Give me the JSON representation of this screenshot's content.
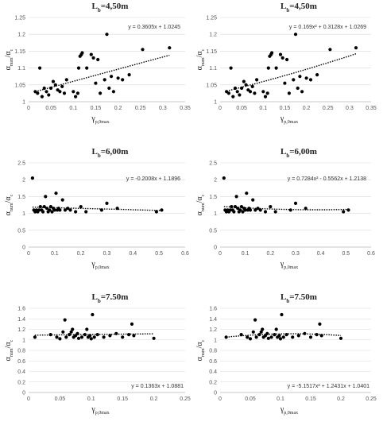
{
  "chart_data": [
    {
      "type": "scatter",
      "title": "Lb=4,50m",
      "title_main": "L",
      "title_sub": "b",
      "title_rest": "=4,50m",
      "ylabel_main": "α",
      "ylabel_sub1": "num",
      "ylabel_mid": "/α",
      "ylabel_sub2": "c",
      "xlabel_main": "γ",
      "xlabel_sub": "p,0max",
      "xlim": [
        0,
        0.35
      ],
      "ylim": [
        1,
        1.25
      ],
      "x_ticks": [
        "0",
        "0.05",
        "0.1",
        "0.15",
        "0.2",
        "0.25",
        "0.3",
        "0.35"
      ],
      "y_ticks": [
        "1",
        "1.05",
        "1.1",
        "1.15",
        "1.2",
        "1.25"
      ],
      "trendline": {
        "type": "linear",
        "coefficients": [
          0.3605,
          1.0245
        ],
        "equation": "y = 0.3605x + 1.0245"
      },
      "x": [
        0.015,
        0.02,
        0.025,
        0.03,
        0.035,
        0.04,
        0.045,
        0.05,
        0.055,
        0.06,
        0.065,
        0.07,
        0.075,
        0.08,
        0.085,
        0.1,
        0.105,
        0.11,
        0.112,
        0.115,
        0.118,
        0.12,
        0.13,
        0.14,
        0.145,
        0.15,
        0.155,
        0.16,
        0.17,
        0.175,
        0.18,
        0.185,
        0.19,
        0.2,
        0.21,
        0.225,
        0.255,
        0.315
      ],
      "y": [
        1.03,
        1.025,
        1.1,
        1.015,
        1.04,
        1.03,
        1.02,
        1.04,
        1.06,
        1.05,
        1.035,
        1.03,
        1.045,
        1.025,
        1.065,
        1.03,
        1.015,
        1.025,
        1.1,
        1.135,
        1.14,
        1.145,
        1.1,
        1.14,
        1.13,
        1.055,
        1.125,
        1.025,
        1.065,
        1.2,
        1.04,
        1.075,
        1.03,
        1.07,
        1.065,
        1.08,
        1.155,
        1.16
      ]
    },
    {
      "type": "scatter",
      "title": "Lb=4,50m",
      "title_main": "L",
      "title_sub": "b",
      "title_rest": "=4,50m",
      "ylabel_main": "α",
      "ylabel_sub1": "num",
      "ylabel_mid": "/α",
      "ylabel_sub2": "c",
      "xlabel_main": "γ",
      "xlabel_sub": "p,0max",
      "xlim": [
        0,
        0.35
      ],
      "ylim": [
        1,
        1.25
      ],
      "x_ticks": [
        "0",
        "0.05",
        "0.1",
        "0.15",
        "0.2",
        "0.25",
        "0.3",
        "0.35"
      ],
      "y_ticks": [
        "1",
        "1.05",
        "1.1",
        "1.15",
        "1.2",
        "1.25"
      ],
      "trendline": {
        "type": "poly2",
        "coefficients": [
          0.169,
          0.3128,
          1.0269
        ],
        "equation": "y = 0.169x² + 0.3128x + 1.0269"
      },
      "x": [
        0.015,
        0.02,
        0.025,
        0.03,
        0.035,
        0.04,
        0.045,
        0.05,
        0.055,
        0.06,
        0.065,
        0.07,
        0.075,
        0.08,
        0.085,
        0.1,
        0.105,
        0.11,
        0.112,
        0.115,
        0.118,
        0.12,
        0.13,
        0.14,
        0.145,
        0.15,
        0.155,
        0.16,
        0.17,
        0.175,
        0.18,
        0.185,
        0.19,
        0.2,
        0.21,
        0.225,
        0.255,
        0.315
      ],
      "y": [
        1.03,
        1.025,
        1.1,
        1.015,
        1.04,
        1.03,
        1.02,
        1.04,
        1.06,
        1.05,
        1.035,
        1.03,
        1.045,
        1.025,
        1.065,
        1.03,
        1.015,
        1.025,
        1.1,
        1.135,
        1.14,
        1.145,
        1.1,
        1.14,
        1.13,
        1.055,
        1.125,
        1.025,
        1.065,
        1.2,
        1.04,
        1.075,
        1.03,
        1.07,
        1.065,
        1.08,
        1.155,
        1.16
      ]
    },
    {
      "type": "scatter",
      "title": "Lb=6,00m",
      "title_main": "L",
      "title_sub": "b",
      "title_rest": "=6,00m",
      "ylabel_main": "α",
      "ylabel_sub1": "num",
      "ylabel_mid": "/α",
      "ylabel_sub2": "c",
      "xlabel_main": "γ",
      "xlabel_sub": "p,0max",
      "xlim": [
        0,
        0.6
      ],
      "ylim": [
        0,
        2.5
      ],
      "x_ticks": [
        "0",
        "0.1",
        "0.2",
        "0.3",
        "0.4",
        "0.5",
        "0.6"
      ],
      "y_ticks": [
        "0",
        "0.5",
        "1",
        "1.5",
        "2",
        "2.5"
      ],
      "trendline": {
        "type": "linear",
        "coefficients": [
          -0.2008,
          1.1896
        ],
        "equation": "y = -0.2008x + 1.1896"
      },
      "x": [
        0.015,
        0.02,
        0.025,
        0.03,
        0.035,
        0.04,
        0.045,
        0.05,
        0.055,
        0.06,
        0.065,
        0.07,
        0.075,
        0.08,
        0.085,
        0.09,
        0.095,
        0.1,
        0.105,
        0.11,
        0.115,
        0.12,
        0.13,
        0.14,
        0.15,
        0.16,
        0.18,
        0.2,
        0.22,
        0.28,
        0.3,
        0.34,
        0.49,
        0.51
      ],
      "y": [
        2.05,
        1.1,
        1.05,
        1.1,
        1.05,
        1.1,
        1.2,
        1.1,
        1.05,
        1.2,
        1.5,
        1.15,
        1.05,
        1.1,
        1.2,
        1.05,
        1.15,
        1.1,
        1.6,
        1.1,
        1.15,
        1.1,
        1.4,
        1.1,
        1.15,
        1.1,
        1.05,
        1.2,
        1.05,
        1.1,
        1.3,
        1.15,
        1.05,
        1.1
      ]
    },
    {
      "type": "scatter",
      "title": "Lb=6,00m",
      "title_main": "L",
      "title_sub": "b",
      "title_rest": "=6,00m",
      "ylabel_main": "α",
      "ylabel_sub1": "num",
      "ylabel_mid": "/α",
      "ylabel_sub2": "c",
      "xlabel_main": "γ",
      "xlabel_sub": "p,0max",
      "xlim": [
        0,
        0.6
      ],
      "ylim": [
        0,
        2.5
      ],
      "x_ticks": [
        "0",
        "0.1",
        "0.2",
        "0.3",
        "0.4",
        "0.5",
        "0.6"
      ],
      "y_ticks": [
        "0",
        "0.5",
        "1",
        "1.5",
        "2",
        "2.5"
      ],
      "trendline": {
        "type": "poly2",
        "coefficients": [
          0.7284,
          -0.5562,
          1.2138
        ],
        "equation": "y = 0.7284x² - 0.5562x + 1.2138"
      },
      "x": [
        0.015,
        0.02,
        0.025,
        0.03,
        0.035,
        0.04,
        0.045,
        0.05,
        0.055,
        0.06,
        0.065,
        0.07,
        0.075,
        0.08,
        0.085,
        0.09,
        0.095,
        0.1,
        0.105,
        0.11,
        0.115,
        0.12,
        0.13,
        0.14,
        0.15,
        0.16,
        0.18,
        0.2,
        0.22,
        0.28,
        0.3,
        0.34,
        0.49,
        0.51
      ],
      "y": [
        2.05,
        1.1,
        1.05,
        1.1,
        1.05,
        1.1,
        1.2,
        1.1,
        1.05,
        1.2,
        1.5,
        1.15,
        1.05,
        1.1,
        1.2,
        1.05,
        1.15,
        1.1,
        1.6,
        1.1,
        1.15,
        1.1,
        1.4,
        1.1,
        1.15,
        1.1,
        1.05,
        1.2,
        1.05,
        1.1,
        1.3,
        1.15,
        1.05,
        1.1
      ]
    },
    {
      "type": "scatter",
      "title": "Lb=7.50m",
      "title_main": "L",
      "title_sub": "b",
      "title_rest": "=7.50m",
      "ylabel_main": "α",
      "ylabel_sub1": "num",
      "ylabel_mid": "/α",
      "ylabel_sub2": "c",
      "xlabel_main": "γ",
      "xlabel_sub": "p,0max",
      "xlim": [
        0,
        0.25
      ],
      "ylim": [
        0,
        1.6
      ],
      "x_ticks": [
        "0",
        "0.05",
        "0.1",
        "0.15",
        "0.2",
        "0.25"
      ],
      "y_ticks": [
        "0",
        "0.2",
        "0.4",
        "0.6",
        "0.8",
        "1",
        "1.2",
        "1.4",
        "1.6"
      ],
      "trendline": {
        "type": "linear",
        "coefficients": [
          0.1363,
          1.0881
        ],
        "equation": "y = 0.1363x + 1.0881"
      },
      "x": [
        0.01,
        0.035,
        0.045,
        0.05,
        0.055,
        0.058,
        0.06,
        0.065,
        0.068,
        0.07,
        0.072,
        0.075,
        0.078,
        0.08,
        0.085,
        0.09,
        0.093,
        0.095,
        0.098,
        0.1,
        0.102,
        0.105,
        0.11,
        0.12,
        0.13,
        0.14,
        0.15,
        0.16,
        0.165,
        0.168,
        0.2
      ],
      "y": [
        1.05,
        1.1,
        1.05,
        1.02,
        1.15,
        1.38,
        1.05,
        1.1,
        1.15,
        1.2,
        1.05,
        1.08,
        1.12,
        1.03,
        1.05,
        1.1,
        1.2,
        1.05,
        1.08,
        1.02,
        1.48,
        1.05,
        1.1,
        1.05,
        1.08,
        1.12,
        1.05,
        1.1,
        1.3,
        1.08,
        1.03
      ]
    },
    {
      "type": "scatter",
      "title": "Lb=7.50m",
      "title_main": "L",
      "title_sub": "b",
      "title_rest": "=7.50m",
      "ylabel_main": "α",
      "ylabel_sub1": "num",
      "ylabel_mid": "/α",
      "ylabel_sub2": "c",
      "xlabel_main": "γ",
      "xlabel_sub": "p,0max",
      "xlim": [
        0,
        0.25
      ],
      "ylim": [
        0,
        1.6
      ],
      "x_ticks": [
        "0",
        "0.05",
        "0.1",
        "0.15",
        "0.2",
        "0.25"
      ],
      "y_ticks": [
        "0",
        "0.2",
        "0.4",
        "0.6",
        "0.8",
        "1",
        "1.2",
        "1.4",
        "1.6"
      ],
      "trendline": {
        "type": "poly2",
        "coefficients": [
          -5.1517,
          1.2431,
          1.0401
        ],
        "equation": "y = -5.1517x² + 1.2431x + 1.0401"
      },
      "x": [
        0.01,
        0.035,
        0.045,
        0.05,
        0.055,
        0.058,
        0.06,
        0.065,
        0.068,
        0.07,
        0.072,
        0.075,
        0.078,
        0.08,
        0.085,
        0.09,
        0.093,
        0.095,
        0.098,
        0.1,
        0.102,
        0.105,
        0.11,
        0.12,
        0.13,
        0.14,
        0.15,
        0.16,
        0.165,
        0.168,
        0.2
      ],
      "y": [
        1.05,
        1.1,
        1.05,
        1.02,
        1.15,
        1.38,
        1.05,
        1.1,
        1.15,
        1.2,
        1.05,
        1.08,
        1.12,
        1.03,
        1.05,
        1.1,
        1.2,
        1.05,
        1.08,
        1.02,
        1.48,
        1.05,
        1.1,
        1.05,
        1.08,
        1.12,
        1.05,
        1.1,
        1.3,
        1.08,
        1.03
      ]
    }
  ]
}
